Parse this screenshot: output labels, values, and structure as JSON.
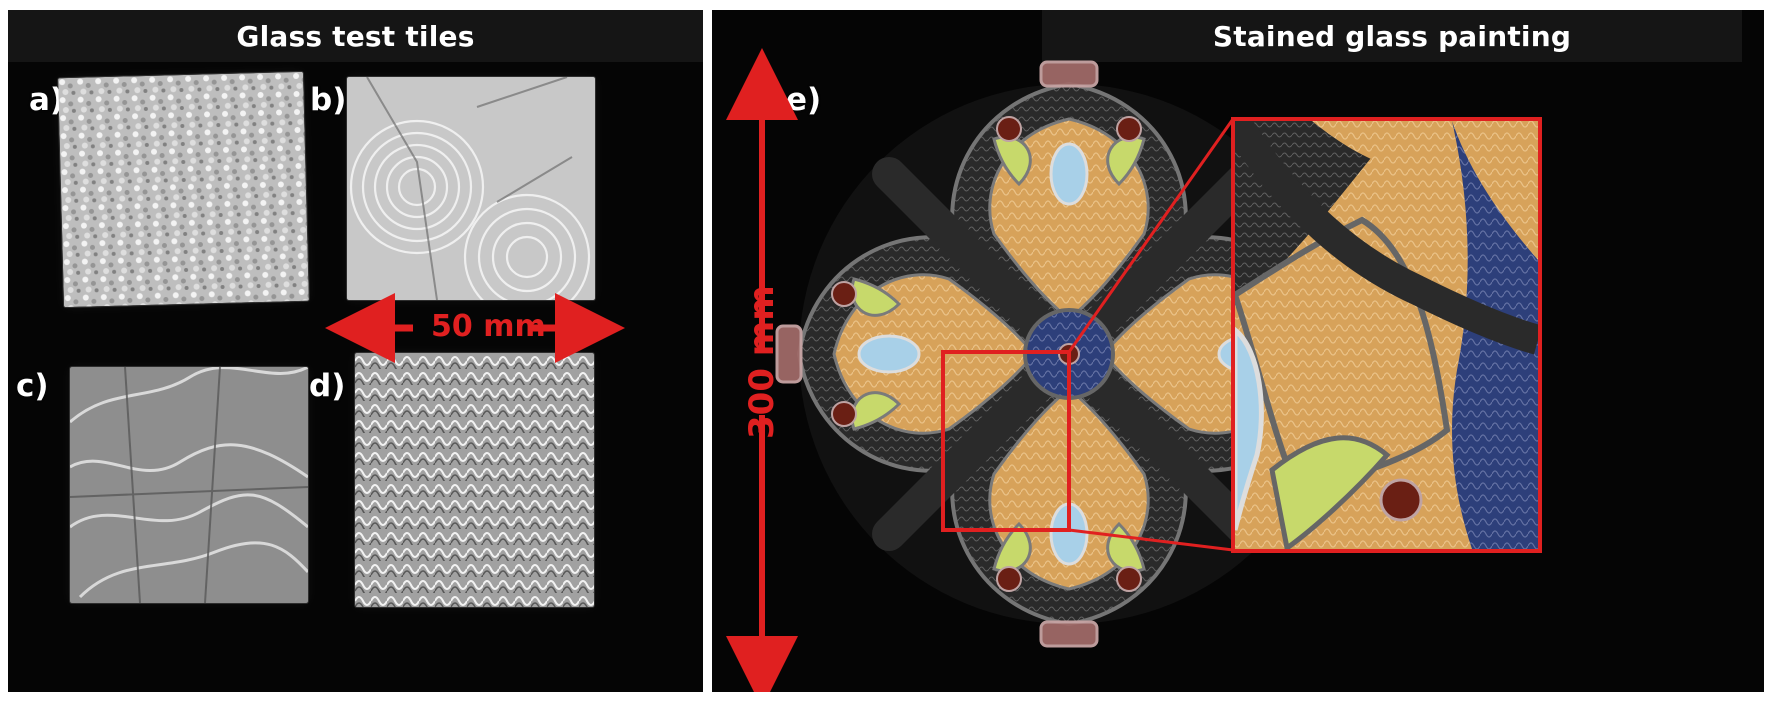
{
  "left_panel": {
    "title": "Glass test tiles",
    "labels": {
      "a": "a)",
      "b": "b)",
      "c": "c)",
      "d": "d)"
    },
    "scale_label": "50 mm"
  },
  "right_panel": {
    "title": "Stained glass painting",
    "label": "e)",
    "scale_label": "300 mm"
  },
  "colors": {
    "background": "#050505",
    "title_strip": "#151515",
    "text": "#ffffff",
    "accent_red": "#e02020",
    "lead": "#2a2a2a",
    "amber_glass": "#d7a25a",
    "blue_glass": "#2d3f7a",
    "light_blue_glass": "#a8d0e8",
    "lime_glass": "#c7d96b",
    "rose_glass": "#9f6a68",
    "bead": "#6a1f14"
  }
}
